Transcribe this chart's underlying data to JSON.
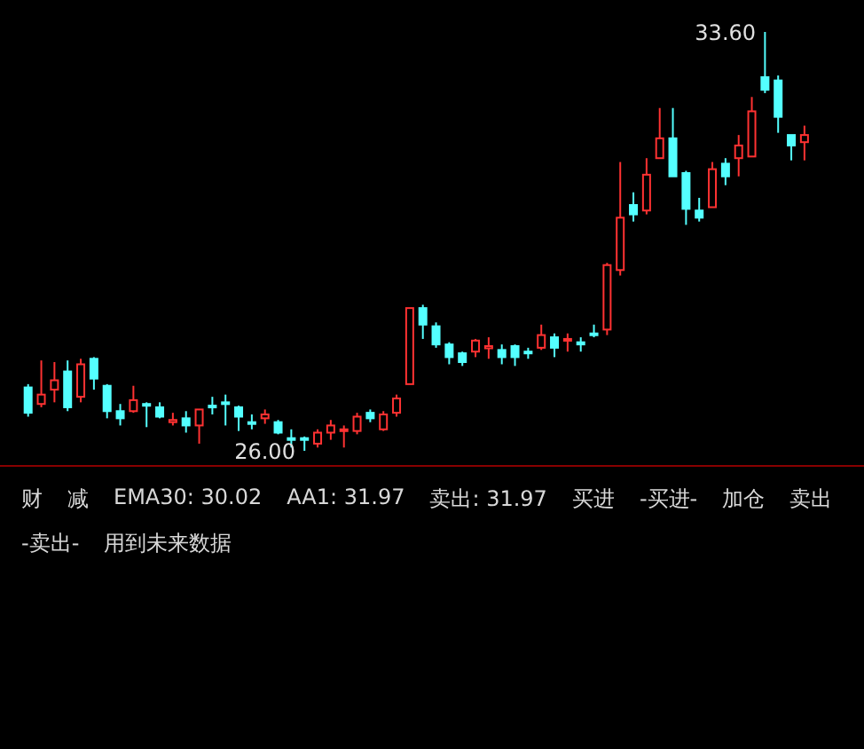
{
  "chart_data": {
    "type": "candlestick",
    "tick_labels": false,
    "categories": [
      null,
      null,
      null,
      null,
      null,
      null,
      null,
      null,
      null,
      null,
      null,
      null,
      null,
      null,
      null,
      null,
      null,
      null,
      null,
      null,
      null,
      null,
      null,
      null,
      null,
      null,
      null,
      null,
      null,
      null,
      null,
      null,
      null,
      null,
      null,
      null,
      null,
      null,
      null,
      null,
      null,
      null,
      null,
      null,
      null,
      null,
      null,
      null,
      null,
      null,
      null,
      null,
      null,
      null,
      null,
      null,
      null,
      null,
      null,
      null
    ],
    "ohlc": [
      [
        27.15,
        27.21,
        26.62,
        26.69
      ],
      [
        26.85,
        27.64,
        26.79,
        27.02
      ],
      [
        27.11,
        27.61,
        26.88,
        27.28
      ],
      [
        27.44,
        27.64,
        26.72,
        26.79
      ],
      [
        26.98,
        27.67,
        26.88,
        27.57
      ],
      [
        27.67,
        27.7,
        27.11,
        27.31
      ],
      [
        27.18,
        27.21,
        26.59,
        26.72
      ],
      [
        26.72,
        26.85,
        26.46,
        26.59
      ],
      [
        26.72,
        27.18,
        26.69,
        26.92
      ],
      [
        26.85,
        26.88,
        26.43,
        26.82
      ],
      [
        26.79,
        26.88,
        26.59,
        26.62
      ],
      [
        26.52,
        26.69,
        26.46,
        26.56
      ],
      [
        26.59,
        26.72,
        26.33,
        26.46
      ],
      [
        26.46,
        26.75,
        26.13,
        26.75
      ],
      [
        26.82,
        26.98,
        26.66,
        26.79
      ],
      [
        26.88,
        27.02,
        26.46,
        26.85
      ],
      [
        26.79,
        26.82,
        26.36,
        26.62
      ],
      [
        26.52,
        26.66,
        26.39,
        26.49
      ],
      [
        26.59,
        26.75,
        26.49,
        26.66
      ],
      [
        26.52,
        26.56,
        26.3,
        26.33
      ],
      [
        26.23,
        26.39,
        26.06,
        26.2
      ],
      [
        26.23,
        26.26,
        26.0,
        26.2
      ],
      [
        26.13,
        26.39,
        26.06,
        26.33
      ],
      [
        26.33,
        26.56,
        26.2,
        26.46
      ],
      [
        26.36,
        26.46,
        26.06,
        26.39
      ],
      [
        26.36,
        26.69,
        26.3,
        26.62
      ],
      [
        26.69,
        26.75,
        26.52,
        26.59
      ],
      [
        26.39,
        26.72,
        26.36,
        26.66
      ],
      [
        26.69,
        27.02,
        26.62,
        26.95
      ],
      [
        27.21,
        28.59,
        27.21,
        28.59
      ],
      [
        28.59,
        28.65,
        28.03,
        28.29
      ],
      [
        28.26,
        28.33,
        27.87,
        27.93
      ],
      [
        27.93,
        27.97,
        27.57,
        27.7
      ],
      [
        27.77,
        27.8,
        27.54,
        27.61
      ],
      [
        27.8,
        28.03,
        27.7,
        28.0
      ],
      [
        27.86,
        28.06,
        27.67,
        27.9
      ],
      [
        27.83,
        27.93,
        27.57,
        27.7
      ],
      [
        27.9,
        27.93,
        27.54,
        27.7
      ],
      [
        27.8,
        27.87,
        27.67,
        27.77
      ],
      [
        27.87,
        28.29,
        27.83,
        28.1
      ],
      [
        28.06,
        28.13,
        27.7,
        27.87
      ],
      [
        28.0,
        28.13,
        27.8,
        28.03
      ],
      [
        27.97,
        28.06,
        27.8,
        27.93
      ],
      [
        28.13,
        28.29,
        28.06,
        28.1
      ],
      [
        28.2,
        29.41,
        28.1,
        29.37
      ],
      [
        29.28,
        31.24,
        29.18,
        30.23
      ],
      [
        30.46,
        30.69,
        30.16,
        30.29
      ],
      [
        30.36,
        31.31,
        30.29,
        31.01
      ],
      [
        31.31,
        32.22,
        31.31,
        31.67
      ],
      [
        31.67,
        32.22,
        30.98,
        30.98
      ],
      [
        31.04,
        31.08,
        30.1,
        30.39
      ],
      [
        30.36,
        30.59,
        30.16,
        30.23
      ],
      [
        30.42,
        31.24,
        30.42,
        31.11
      ],
      [
        31.21,
        31.31,
        30.82,
        30.98
      ],
      [
        31.31,
        31.73,
        30.98,
        31.54
      ],
      [
        31.34,
        32.42,
        31.34,
        32.16
      ],
      [
        32.78,
        33.6,
        32.49,
        32.55
      ],
      [
        32.72,
        32.81,
        31.77,
        32.06
      ],
      [
        31.73,
        31.73,
        31.27,
        31.54
      ],
      [
        31.6,
        31.9,
        31.27,
        31.73
      ]
    ],
    "colors": [
      "#54ffff",
      "#ff3232",
      "#ff3232",
      "#54ffff",
      "#ff3232",
      "#54ffff",
      "#54ffff",
      "#54ffff",
      "#ff3232",
      "#54ffff",
      "#54ffff",
      "#ff3232",
      "#54ffff",
      "#ff3232",
      "#54ffff",
      "#54ffff",
      "#54ffff",
      "#54ffff",
      "#ff3232",
      "#54ffff",
      "#54ffff",
      "#54ffff",
      "#ff3232",
      "#ff3232",
      "#ff3232",
      "#ff3232",
      "#54ffff",
      "#ff3232",
      "#ff3232",
      "#ff3232",
      "#54ffff",
      "#54ffff",
      "#54ffff",
      "#54ffff",
      "#ff3232",
      "#ff3232",
      "#54ffff",
      "#54ffff",
      "#54ffff",
      "#ff3232",
      "#54ffff",
      "#ff3232",
      "#54ffff",
      "#54ffff",
      "#ff3232",
      "#ff3232",
      "#54ffff",
      "#ff3232",
      "#ff3232",
      "#54ffff",
      "#54ffff",
      "#54ffff",
      "#ff3232",
      "#54ffff",
      "#ff3232",
      "#ff3232",
      "#54ffff",
      "#54ffff",
      "#54ffff",
      "#ff3232"
    ],
    "annotations": [
      "33.60",
      "26.00",
      "财",
      "减",
      "EMA30: 30.02",
      "AA1: 31.97",
      "卖出: 31.97",
      "买进",
      "-买进-",
      "加仓",
      "卖出",
      "-卖出-",
      "用到未来数据"
    ]
  }
}
